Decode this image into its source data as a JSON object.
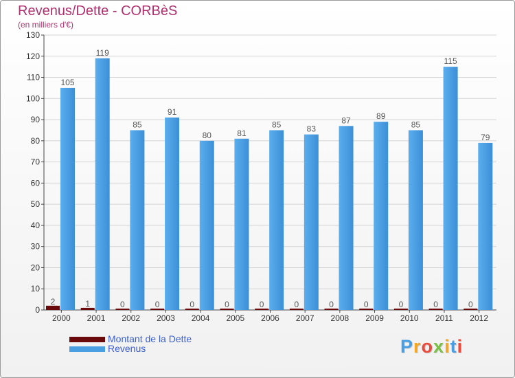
{
  "chart_data": {
    "type": "bar",
    "title": "Revenus/Dette - CORBèS",
    "subtitle": "(en milliers d'€)",
    "categories": [
      "2000",
      "2001",
      "2002",
      "2003",
      "2004",
      "2005",
      "2006",
      "2007",
      "2008",
      "2009",
      "2010",
      "2011",
      "2012"
    ],
    "series": [
      {
        "name": "Montant de la Dette",
        "color": "#6b0a0a",
        "values": [
          2,
          1,
          0,
          0,
          0,
          0,
          0,
          0,
          0,
          0,
          0,
          0,
          0
        ]
      },
      {
        "name": "Revenus",
        "color": "#4a9ee2",
        "values": [
          105,
          119,
          85,
          91,
          80,
          81,
          85,
          83,
          87,
          89,
          85,
          115,
          79
        ]
      }
    ],
    "ylim": [
      0,
      130
    ],
    "yticks": [
      0,
      10,
      20,
      30,
      40,
      50,
      60,
      70,
      80,
      90,
      100,
      110,
      120,
      130
    ],
    "grid": true,
    "legend_position": "bottom-left"
  },
  "logo": {
    "letters": [
      "P",
      "r",
      "o",
      "x",
      "i",
      "t",
      "i"
    ],
    "colors": [
      "#4a9ee2",
      "#f5a623",
      "#e94b3c",
      "#7ac143",
      "#f5a623",
      "#4a9ee2",
      "#e94b3c"
    ]
  }
}
